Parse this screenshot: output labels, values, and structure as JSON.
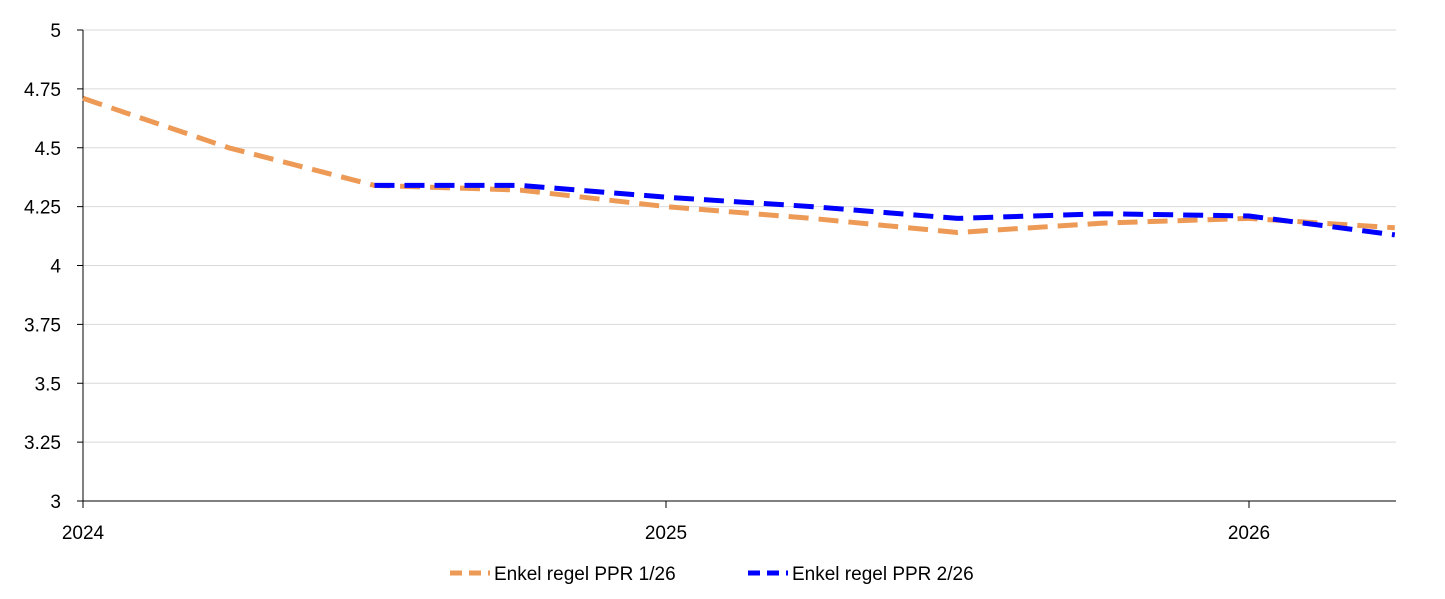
{
  "chart_data": {
    "type": "line",
    "title": "",
    "xlabel": "",
    "ylabel": "",
    "ylim": [
      3,
      5
    ],
    "xlim": [
      2024,
      2026.25
    ],
    "y_ticks": [
      "3",
      "3.25",
      "3.5",
      "3.75",
      "4",
      "4.25",
      "4.5",
      "4.75",
      "5"
    ],
    "x_ticks": [
      "2024",
      "2025",
      "2026"
    ],
    "grid": "horizontal",
    "legend_position": "bottom",
    "series": [
      {
        "name": "Enkel regel PPR 1/26",
        "color": "#ED9A56",
        "points": [
          {
            "x": 2024.0,
            "y": 4.71
          },
          {
            "x": 2024.25,
            "y": 4.5
          },
          {
            "x": 2024.5,
            "y": 4.34
          },
          {
            "x": 2024.75,
            "y": 4.32
          },
          {
            "x": 2025.0,
            "y": 4.25
          },
          {
            "x": 2025.25,
            "y": 4.2
          },
          {
            "x": 2025.5,
            "y": 4.14
          },
          {
            "x": 2025.75,
            "y": 4.18
          },
          {
            "x": 2026.0,
            "y": 4.2
          },
          {
            "x": 2026.25,
            "y": 4.16
          }
        ]
      },
      {
        "name": "Enkel regel PPR 2/26",
        "color": "#0000FF",
        "points": [
          {
            "x": 2024.5,
            "y": 4.34
          },
          {
            "x": 2024.75,
            "y": 4.34
          },
          {
            "x": 2025.0,
            "y": 4.29
          },
          {
            "x": 2025.25,
            "y": 4.25
          },
          {
            "x": 2025.5,
            "y": 4.2
          },
          {
            "x": 2025.75,
            "y": 4.22
          },
          {
            "x": 2026.0,
            "y": 4.21
          },
          {
            "x": 2026.25,
            "y": 4.13
          }
        ]
      }
    ]
  }
}
